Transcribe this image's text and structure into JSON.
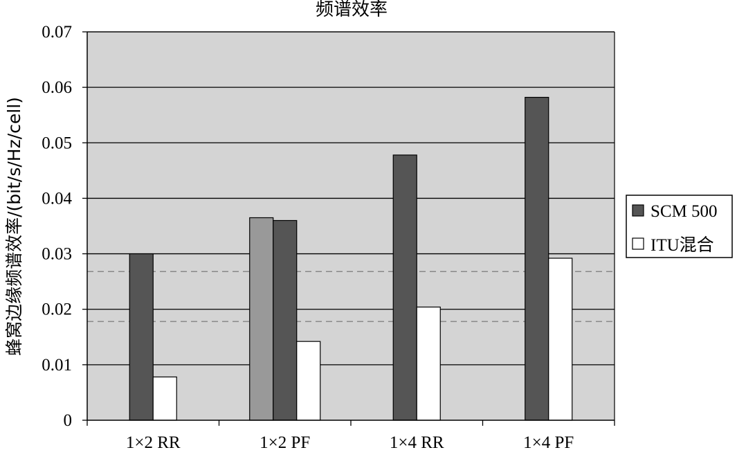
{
  "chart_data": {
    "type": "bar",
    "title": "频谱效率",
    "ylabel": "蜂窝边缘频谱效率/(bit/s/Hz/cell)",
    "xlabel": "",
    "categories": [
      "1×2 RR",
      "1×2 PF",
      "1×4 RR",
      "1×4 PF"
    ],
    "ylim": [
      0,
      0.07
    ],
    "yticks": [
      0,
      0.01,
      0.02,
      0.03,
      0.04,
      0.05,
      0.06,
      0.07
    ],
    "ytick_labels": [
      "0",
      "0.01",
      "0.02",
      "0.03",
      "0.04",
      "0.05",
      "0.06",
      "0.07"
    ],
    "grid": true,
    "legend_position": "right",
    "plot_background": "#d4d4d4",
    "series": [
      {
        "name": "SCM 500",
        "color": "#555555",
        "values": [
          0.03,
          0.036,
          0.0478,
          0.0582
        ]
      },
      {
        "name": "ITU混合",
        "color": "#ffffff",
        "values": [
          0.0078,
          0.0142,
          0.0204,
          0.0292
        ]
      }
    ],
    "extra_bars": [
      {
        "category": "1×2 PF",
        "value": 0.0365,
        "color": "#999999"
      }
    ],
    "reference_lines": [
      {
        "value": 0.0268,
        "style": "dashed",
        "color": "#888888"
      },
      {
        "value": 0.0178,
        "style": "dashed",
        "color": "#888888"
      }
    ]
  }
}
